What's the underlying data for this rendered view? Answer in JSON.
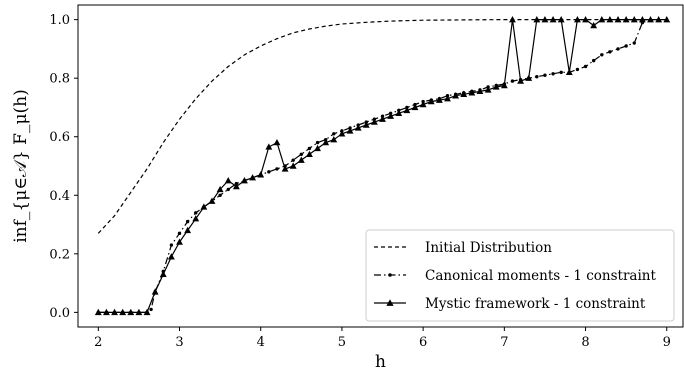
{
  "chart_data": {
    "type": "line",
    "xlabel": "h",
    "ylabel": "inf_{μ∈𝒜} F_μ(h)",
    "xlim": [
      1.75,
      9.2
    ],
    "ylim": [
      -0.05,
      1.05
    ],
    "xticks": [
      "2",
      "3",
      "4",
      "5",
      "6",
      "7",
      "8",
      "9"
    ],
    "yticks": [
      "0.0",
      "0.2",
      "0.4",
      "0.6",
      "0.8",
      "1.0"
    ],
    "legend_position": "lower-right",
    "series": [
      {
        "name": "Initial Distribution",
        "style": "dashed",
        "marker": "none",
        "color": "#000000",
        "x": [
          2.0,
          2.2,
          2.4,
          2.6,
          2.8,
          3.0,
          3.2,
          3.4,
          3.6,
          3.8,
          4.0,
          4.2,
          4.4,
          4.6,
          4.8,
          5.0,
          5.3,
          5.6,
          6.0,
          6.5,
          7.0,
          8.0,
          9.0
        ],
        "y": [
          0.27,
          0.33,
          0.41,
          0.49,
          0.58,
          0.66,
          0.73,
          0.79,
          0.84,
          0.88,
          0.91,
          0.935,
          0.955,
          0.968,
          0.978,
          0.985,
          0.991,
          0.995,
          0.998,
          0.999,
          1.0,
          1.0,
          1.0
        ]
      },
      {
        "name": "Canonical moments - 1 constraint",
        "style": "dashdot",
        "marker": "dot",
        "color": "#000000",
        "x": [
          2.0,
          2.1,
          2.2,
          2.3,
          2.4,
          2.5,
          2.6,
          2.65,
          2.7,
          2.8,
          2.9,
          3.0,
          3.1,
          3.2,
          3.3,
          3.4,
          3.5,
          3.6,
          3.7,
          3.8,
          3.9,
          4.0,
          4.1,
          4.2,
          4.3,
          4.4,
          4.5,
          4.6,
          4.7,
          4.8,
          4.9,
          5.0,
          5.1,
          5.2,
          5.3,
          5.4,
          5.5,
          5.6,
          5.7,
          5.8,
          5.9,
          6.0,
          6.1,
          6.2,
          6.3,
          6.4,
          6.5,
          6.6,
          6.7,
          6.8,
          6.9,
          7.0,
          7.1,
          7.2,
          7.3,
          7.4,
          7.5,
          7.6,
          7.7,
          7.8,
          7.9,
          8.0,
          8.1,
          8.2,
          8.3,
          8.4,
          8.5,
          8.6,
          8.7
        ],
        "y": [
          0.0,
          0.0,
          0.0,
          0.0,
          0.0,
          0.0,
          0.0,
          0.01,
          0.07,
          0.14,
          0.23,
          0.27,
          0.31,
          0.34,
          0.36,
          0.38,
          0.4,
          0.42,
          0.44,
          0.45,
          0.46,
          0.47,
          0.48,
          0.49,
          0.5,
          0.52,
          0.54,
          0.56,
          0.58,
          0.59,
          0.61,
          0.62,
          0.63,
          0.64,
          0.65,
          0.66,
          0.67,
          0.68,
          0.69,
          0.7,
          0.71,
          0.72,
          0.725,
          0.73,
          0.74,
          0.745,
          0.75,
          0.755,
          0.76,
          0.77,
          0.775,
          0.78,
          0.79,
          0.795,
          0.8,
          0.805,
          0.81,
          0.815,
          0.82,
          0.82,
          0.83,
          0.84,
          0.86,
          0.88,
          0.89,
          0.9,
          0.91,
          0.92,
          0.99
        ]
      },
      {
        "name": "Mystic framework - 1 constraint",
        "style": "solid",
        "marker": "triangle",
        "color": "#000000",
        "x": [
          2.0,
          2.1,
          2.2,
          2.3,
          2.4,
          2.5,
          2.6,
          2.7,
          2.8,
          2.9,
          3.0,
          3.1,
          3.2,
          3.3,
          3.4,
          3.5,
          3.6,
          3.7,
          3.8,
          3.9,
          4.0,
          4.1,
          4.2,
          4.3,
          4.4,
          4.5,
          4.6,
          4.7,
          4.8,
          4.9,
          5.0,
          5.1,
          5.2,
          5.3,
          5.4,
          5.5,
          5.6,
          5.7,
          5.8,
          5.9,
          6.0,
          6.1,
          6.2,
          6.3,
          6.4,
          6.5,
          6.6,
          6.7,
          6.8,
          6.9,
          7.0,
          7.1,
          7.2,
          7.3,
          7.4,
          7.5,
          7.6,
          7.7,
          7.8,
          7.9,
          8.0,
          8.1,
          8.2,
          8.3,
          8.4,
          8.5,
          8.6,
          8.7,
          8.8,
          8.9,
          9.0
        ],
        "y": [
          0.0,
          0.0,
          0.0,
          0.0,
          0.0,
          0.0,
          0.0,
          0.07,
          0.13,
          0.19,
          0.24,
          0.28,
          0.32,
          0.36,
          0.38,
          0.42,
          0.45,
          0.43,
          0.45,
          0.46,
          0.47,
          0.565,
          0.58,
          0.49,
          0.5,
          0.52,
          0.54,
          0.56,
          0.58,
          0.59,
          0.61,
          0.62,
          0.63,
          0.64,
          0.65,
          0.66,
          0.67,
          0.68,
          0.69,
          0.7,
          0.71,
          0.72,
          0.725,
          0.73,
          0.74,
          0.745,
          0.75,
          0.755,
          0.76,
          0.77,
          0.775,
          1.0,
          0.79,
          0.8,
          1.0,
          1.0,
          1.0,
          1.0,
          0.82,
          1.0,
          1.0,
          0.98,
          1.0,
          1.0,
          1.0,
          1.0,
          1.0,
          1.0,
          1.0,
          1.0,
          1.0
        ]
      }
    ]
  }
}
